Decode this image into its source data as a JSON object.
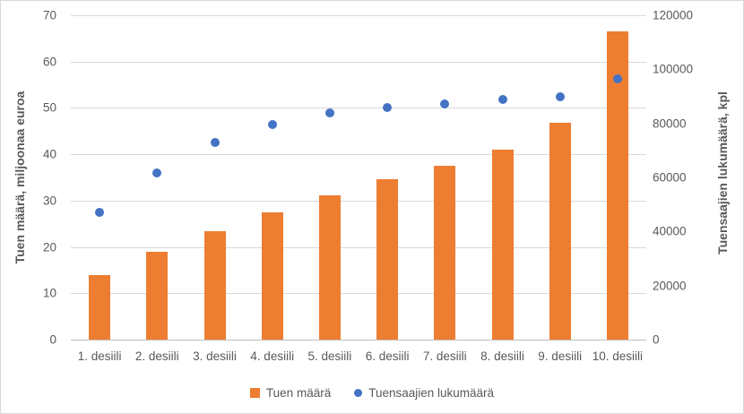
{
  "chart_data": {
    "type": "combo-bar-scatter",
    "title": "",
    "categories": [
      "1. desiili",
      "2. desiili",
      "3. desiili",
      "4. desiili",
      "5. desiili",
      "6. desiili",
      "7. desiili",
      "8. desiili",
      "9. desiili",
      "10. desiili"
    ],
    "series": [
      {
        "name": "Tuen määrä",
        "type": "bar",
        "axis": "left",
        "color": "#ED7D31",
        "values": [
          14.0,
          18.9,
          23.4,
          27.4,
          31.2,
          34.6,
          37.5,
          41.0,
          46.7,
          66.5
        ]
      },
      {
        "name": "Tuensaajien lukumäärä",
        "type": "scatter",
        "axis": "right",
        "color": "#4472C4",
        "values": [
          47000,
          61500,
          73000,
          79500,
          84000,
          85700,
          87200,
          88700,
          89800,
          96600
        ]
      }
    ],
    "left_axis": {
      "title": "Tuen määrä, miljoonaa euroa",
      "min": 0,
      "max": 70,
      "step": 10,
      "ticks": [
        0,
        10,
        20,
        30,
        40,
        50,
        60,
        70
      ]
    },
    "right_axis": {
      "title": "Tuensaajien lukumäärä, kpl",
      "min": 0,
      "max": 120000,
      "step": 20000,
      "ticks": [
        0,
        20000,
        40000,
        60000,
        80000,
        100000,
        120000
      ]
    },
    "grid": true,
    "legend_position": "bottom",
    "colors": {
      "gridline": "#D9D9D9",
      "axis_line": "#BFBFBF",
      "tick_label": "#595959",
      "axis_title": "#595959",
      "border": "#D9D9D9"
    }
  }
}
